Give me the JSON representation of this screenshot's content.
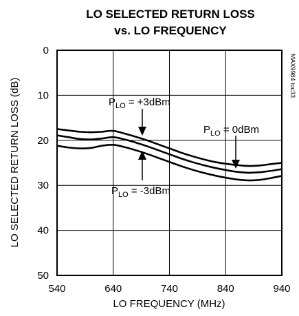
{
  "chart_data": {
    "type": "line",
    "title_line1": "LO SELECTED RETURN LOSS",
    "title_line2": "vs. LO FREQUENCY",
    "xlabel": "LO FREQUENCY (MHz)",
    "ylabel": "LO SELECTED RETURN LOSS (dB)",
    "chart_code": "MAX9984 toc33",
    "xlim": [
      540,
      940
    ],
    "ylim": [
      0,
      50
    ],
    "y_inverted": true,
    "x_ticks": [
      "540",
      "640",
      "740",
      "840",
      "940"
    ],
    "y_ticks": [
      "0",
      "10",
      "20",
      "30",
      "40",
      "50"
    ],
    "grid": true,
    "series": [
      {
        "name": "PLO = +3dBm",
        "x": [
          540,
          560,
          580,
          600,
          620,
          640,
          660,
          680,
          700,
          720,
          740,
          760,
          780,
          800,
          820,
          840,
          860,
          880,
          900,
          920,
          940
        ],
        "y": [
          17.5,
          17.8,
          18.1,
          18.2,
          18.1,
          17.9,
          18.5,
          19.2,
          20.0,
          20.9,
          21.8,
          22.7,
          23.5,
          24.2,
          24.8,
          25.2,
          25.5,
          25.7,
          25.6,
          25.3,
          25.0
        ]
      },
      {
        "name": "PLO = 0dBm",
        "x": [
          540,
          560,
          580,
          600,
          620,
          640,
          660,
          680,
          700,
          720,
          740,
          760,
          780,
          800,
          820,
          840,
          860,
          880,
          900,
          920,
          940
        ],
        "y": [
          18.9,
          19.3,
          19.7,
          19.8,
          19.6,
          19.3,
          19.8,
          20.5,
          21.3,
          22.2,
          23.1,
          24.0,
          24.8,
          25.5,
          26.1,
          26.6,
          27.0,
          27.2,
          27.1,
          26.8,
          26.4
        ]
      },
      {
        "name": "PLO = -3dBm",
        "x": [
          540,
          560,
          580,
          600,
          620,
          640,
          660,
          680,
          700,
          720,
          740,
          760,
          780,
          800,
          820,
          840,
          860,
          880,
          900,
          920,
          940
        ],
        "y": [
          21.2,
          21.6,
          21.8,
          21.7,
          21.2,
          21.0,
          21.5,
          22.2,
          23.0,
          23.9,
          24.8,
          25.7,
          26.5,
          27.2,
          27.8,
          28.3,
          28.7,
          28.9,
          28.8,
          28.4,
          27.9
        ]
      }
    ],
    "annotations": {
      "p3": {
        "main": "P",
        "sub": "LO",
        "rest": " = +3dBm"
      },
      "p0": {
        "main": "P",
        "sub": "LO",
        "rest": " = 0dBm"
      },
      "pm3": {
        "main": "P",
        "sub": "LO",
        "rest": " = -3dBm"
      }
    }
  }
}
